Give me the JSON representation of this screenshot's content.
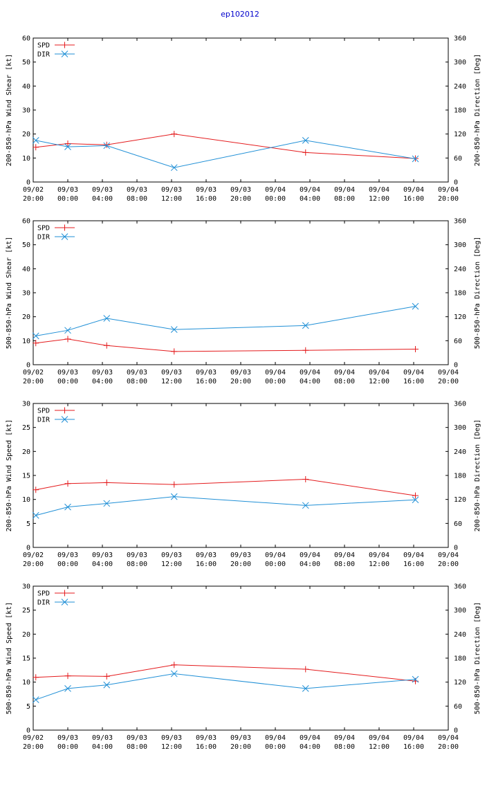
{
  "title": "ep102012",
  "colors": {
    "spd": "#e41a1c",
    "dir": "#1f8fd6",
    "title": "#0000cc",
    "axis": "#000000"
  },
  "chart_data": [
    {
      "type": "line",
      "ylabel": "200-850-hPa Wind Shear [kt]",
      "y2label": "200-850-hPa Direction [Deg]",
      "ylim": [
        0,
        60
      ],
      "yticks": [
        0,
        10,
        20,
        30,
        40,
        50,
        60
      ],
      "y2lim": [
        0,
        360
      ],
      "y2ticks": [
        0,
        60,
        120,
        180,
        240,
        300,
        360
      ],
      "xlim": [
        0,
        48
      ],
      "xticks": [
        {
          "x": 0,
          "date": "09/02",
          "time": "20:00"
        },
        {
          "x": 4,
          "date": "09/03",
          "time": "00:00"
        },
        {
          "x": 8,
          "date": "09/03",
          "time": "04:00"
        },
        {
          "x": 12,
          "date": "09/03",
          "time": "08:00"
        },
        {
          "x": 16,
          "date": "09/03",
          "time": "12:00"
        },
        {
          "x": 20,
          "date": "09/03",
          "time": "16:00"
        },
        {
          "x": 24,
          "date": "09/03",
          "time": "20:00"
        },
        {
          "x": 28,
          "date": "09/04",
          "time": "00:00"
        },
        {
          "x": 32,
          "date": "09/04",
          "time": "04:00"
        },
        {
          "x": 36,
          "date": "09/04",
          "time": "08:00"
        },
        {
          "x": 40,
          "date": "09/04",
          "time": "12:00"
        },
        {
          "x": 44,
          "date": "09/04",
          "time": "16:00"
        },
        {
          "x": 48,
          "date": "09/04",
          "time": "20:00"
        }
      ],
      "series": [
        {
          "name": "SPD",
          "axis": "y1",
          "marker": "+",
          "x": [
            0.3,
            4,
            8.5,
            16.3,
            31.5,
            44.2
          ],
          "y": [
            14.5,
            16,
            15.5,
            20,
            12.3,
            9.8
          ]
        },
        {
          "name": "DIR",
          "axis": "y2",
          "marker": "x",
          "x": [
            0.3,
            4,
            8.5,
            16.3,
            31.5,
            44.2
          ],
          "y": [
            104,
            88,
            91,
            36,
            104,
            58
          ]
        }
      ]
    },
    {
      "type": "line",
      "ylabel": "500-850-hPa Wind Shear [kt]",
      "y2label": "500-850-hPa Direction [Deg]",
      "ylim": [
        0,
        60
      ],
      "yticks": [
        0,
        10,
        20,
        30,
        40,
        50,
        60
      ],
      "y2lim": [
        0,
        360
      ],
      "y2ticks": [
        0,
        60,
        120,
        180,
        240,
        300,
        360
      ],
      "xlim": [
        0,
        48
      ],
      "xticks": [
        {
          "x": 0,
          "date": "09/02",
          "time": "20:00"
        },
        {
          "x": 4,
          "date": "09/03",
          "time": "00:00"
        },
        {
          "x": 8,
          "date": "09/03",
          "time": "04:00"
        },
        {
          "x": 12,
          "date": "09/03",
          "time": "08:00"
        },
        {
          "x": 16,
          "date": "09/03",
          "time": "12:00"
        },
        {
          "x": 20,
          "date": "09/03",
          "time": "16:00"
        },
        {
          "x": 24,
          "date": "09/03",
          "time": "20:00"
        },
        {
          "x": 28,
          "date": "09/04",
          "time": "00:00"
        },
        {
          "x": 32,
          "date": "09/04",
          "time": "04:00"
        },
        {
          "x": 36,
          "date": "09/04",
          "time": "08:00"
        },
        {
          "x": 40,
          "date": "09/04",
          "time": "12:00"
        },
        {
          "x": 44,
          "date": "09/04",
          "time": "16:00"
        },
        {
          "x": 48,
          "date": "09/04",
          "time": "20:00"
        }
      ],
      "series": [
        {
          "name": "SPD",
          "axis": "y1",
          "marker": "+",
          "x": [
            0.3,
            4,
            8.5,
            16.3,
            31.5,
            44.2
          ],
          "y": [
            9,
            10.7,
            8,
            5.5,
            6,
            6.5
          ]
        },
        {
          "name": "DIR",
          "axis": "y2",
          "marker": "x",
          "x": [
            0.3,
            4,
            8.5,
            16.3,
            31.5,
            44.2
          ],
          "y": [
            72,
            86,
            116,
            88,
            98,
            146
          ]
        }
      ]
    },
    {
      "type": "line",
      "ylabel": "200-850-hPa Wind Speed [kt]",
      "y2label": "200-850-hPa Direction [Deg]",
      "ylim": [
        0,
        30
      ],
      "yticks": [
        0,
        5,
        10,
        15,
        20,
        25,
        30
      ],
      "y2lim": [
        0,
        360
      ],
      "y2ticks": [
        0,
        60,
        120,
        180,
        240,
        300,
        360
      ],
      "xlim": [
        0,
        48
      ],
      "xticks": [
        {
          "x": 0,
          "date": "09/02",
          "time": "20:00"
        },
        {
          "x": 4,
          "date": "09/03",
          "time": "00:00"
        },
        {
          "x": 8,
          "date": "09/03",
          "time": "04:00"
        },
        {
          "x": 12,
          "date": "09/03",
          "time": "08:00"
        },
        {
          "x": 16,
          "date": "09/03",
          "time": "12:00"
        },
        {
          "x": 20,
          "date": "09/03",
          "time": "16:00"
        },
        {
          "x": 24,
          "date": "09/03",
          "time": "20:00"
        },
        {
          "x": 28,
          "date": "09/04",
          "time": "00:00"
        },
        {
          "x": 32,
          "date": "09/04",
          "time": "04:00"
        },
        {
          "x": 36,
          "date": "09/04",
          "time": "08:00"
        },
        {
          "x": 40,
          "date": "09/04",
          "time": "12:00"
        },
        {
          "x": 44,
          "date": "09/04",
          "time": "16:00"
        },
        {
          "x": 48,
          "date": "09/04",
          "time": "20:00"
        }
      ],
      "series": [
        {
          "name": "SPD",
          "axis": "y1",
          "marker": "+",
          "x": [
            0.3,
            4,
            8.5,
            16.3,
            31.5,
            44.2
          ],
          "y": [
            12,
            13.3,
            13.5,
            13.1,
            14.2,
            10.8
          ]
        },
        {
          "name": "DIR",
          "axis": "y2",
          "marker": "x",
          "x": [
            0.3,
            4,
            8.5,
            16.3,
            31.5,
            44.2
          ],
          "y": [
            80,
            101,
            110,
            127,
            105,
            119
          ]
        }
      ]
    },
    {
      "type": "line",
      "ylabel": "500-850-hPa Wind Speed [kt]",
      "y2label": "500-850-hPa Direction [Deg]",
      "ylim": [
        0,
        30
      ],
      "yticks": [
        0,
        5,
        10,
        15,
        20,
        25,
        30
      ],
      "y2lim": [
        0,
        360
      ],
      "y2ticks": [
        0,
        60,
        120,
        180,
        240,
        300,
        360
      ],
      "xlim": [
        0,
        48
      ],
      "xticks": [
        {
          "x": 0,
          "date": "09/02",
          "time": "20:00"
        },
        {
          "x": 4,
          "date": "09/03",
          "time": "00:00"
        },
        {
          "x": 8,
          "date": "09/03",
          "time": "04:00"
        },
        {
          "x": 12,
          "date": "09/03",
          "time": "08:00"
        },
        {
          "x": 16,
          "date": "09/03",
          "time": "12:00"
        },
        {
          "x": 20,
          "date": "09/03",
          "time": "16:00"
        },
        {
          "x": 24,
          "date": "09/03",
          "time": "20:00"
        },
        {
          "x": 28,
          "date": "09/04",
          "time": "00:00"
        },
        {
          "x": 32,
          "date": "09/04",
          "time": "04:00"
        },
        {
          "x": 36,
          "date": "09/04",
          "time": "08:00"
        },
        {
          "x": 40,
          "date": "09/04",
          "time": "12:00"
        },
        {
          "x": 44,
          "date": "09/04",
          "time": "16:00"
        },
        {
          "x": 48,
          "date": "09/04",
          "time": "20:00"
        }
      ],
      "series": [
        {
          "name": "SPD",
          "axis": "y1",
          "marker": "+",
          "x": [
            0.3,
            4,
            8.5,
            16.3,
            31.5,
            44.2
          ],
          "y": [
            11,
            11.3,
            11.2,
            13.6,
            12.7,
            10.2
          ]
        },
        {
          "name": "DIR",
          "axis": "y2",
          "marker": "x",
          "x": [
            0.3,
            4,
            8.5,
            16.3,
            31.5,
            44.2
          ],
          "y": [
            76,
            104,
            113,
            141,
            104,
            127
          ]
        }
      ]
    }
  ]
}
